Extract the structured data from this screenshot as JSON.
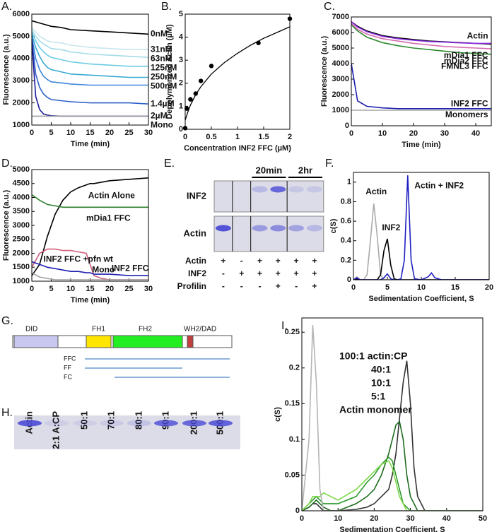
{
  "chart_data": [
    {
      "type": "line",
      "panel_label": "A.",
      "xlabel": "Time (min)",
      "ylabel": "Fluorescence (a.u.)",
      "xlim": [
        0,
        30
      ],
      "ylim": [
        1000,
        6000
      ],
      "xticks": [
        0,
        5,
        10,
        15,
        20,
        25,
        30
      ],
      "yticks": [
        1000,
        2000,
        3000,
        4000,
        5000,
        6000
      ],
      "x": [
        0,
        1,
        2,
        3,
        4,
        5,
        7.5,
        10,
        15,
        20,
        25,
        30
      ],
      "series": [
        {
          "name": "0nM",
          "color": "#000000",
          "values": [
            5700,
            5650,
            5600,
            5550,
            5500,
            5450,
            5400,
            5300,
            5250,
            5200,
            5150,
            5100
          ]
        },
        {
          "name": "31nM",
          "color": "#c8e6ee",
          "values": [
            5400,
            5200,
            5000,
            4900,
            4800,
            4750,
            4700,
            4600,
            4500,
            4450,
            4400,
            4400
          ]
        },
        {
          "name": "63nM",
          "color": "#a6dbe9",
          "values": [
            5300,
            5000,
            4800,
            4650,
            4550,
            4450,
            4400,
            4300,
            4200,
            4150,
            4100,
            4050
          ]
        },
        {
          "name": "125nM",
          "color": "#6ccbe4",
          "values": [
            5200,
            4800,
            4500,
            4300,
            4150,
            4050,
            3950,
            3850,
            3750,
            3700,
            3650,
            3650
          ]
        },
        {
          "name": "250nM",
          "color": "#39a9d3",
          "values": [
            5100,
            4500,
            4100,
            3800,
            3600,
            3500,
            3400,
            3300,
            3250,
            3200,
            3150,
            3150
          ]
        },
        {
          "name": "500nM",
          "color": "#3d86db",
          "values": [
            5000,
            4000,
            3500,
            3200,
            3050,
            2950,
            2900,
            2850,
            2800,
            2800,
            2800,
            2800
          ]
        },
        {
          "name": "1.4µM",
          "color": "#2f5fc9",
          "values": [
            4900,
            3300,
            2700,
            2400,
            2250,
            2150,
            2100,
            2050,
            2000,
            2000,
            2000,
            1950
          ]
        },
        {
          "name": "2µM",
          "color": "#1a1a99",
          "values": [
            4800,
            2300,
            1700,
            1500,
            1450,
            1420,
            1400,
            1400,
            1400,
            1400,
            1400,
            1400
          ]
        },
        {
          "name": "Mono",
          "color": "#a0a0a0",
          "values": [
            1400,
            1400,
            1400,
            1400,
            1400,
            1400,
            1400,
            1400,
            1400,
            1400,
            1400,
            1400
          ]
        }
      ]
    },
    {
      "type": "scatter",
      "panel_label": "B.",
      "xlabel": "Concentration INF2 FFC (µM)",
      "ylabel": "Depolymerized Actin (µM)",
      "xlim": [
        0,
        2
      ],
      "ylim": [
        0,
        5
      ],
      "xticks": [
        0,
        0.5,
        1,
        1.5,
        2
      ],
      "yticks": [
        0,
        1,
        2,
        3,
        4,
        5
      ],
      "x": [
        0,
        0.03,
        0.1,
        0.2,
        0.3,
        0.5,
        1.4,
        2
      ],
      "values": [
        0.05,
        0.9,
        1.3,
        1.55,
        2.1,
        2.75,
        3.75,
        4.8
      ],
      "color": "#000000",
      "fit": {
        "x": [
          0,
          0.05,
          0.1,
          0.2,
          0.3,
          0.5,
          0.75,
          1,
          1.25,
          1.5,
          1.75,
          2
        ],
        "values": [
          0.4,
          0.75,
          1.05,
          1.5,
          1.85,
          2.4,
          2.9,
          3.3,
          3.65,
          3.95,
          4.2,
          4.45
        ]
      }
    },
    {
      "type": "line",
      "panel_label": "C.",
      "xlabel": "Time (min)",
      "ylabel": "Fluorescence (a.u.)",
      "xlim": [
        0,
        45
      ],
      "ylim": [
        0,
        7000
      ],
      "xticks": [
        0,
        10,
        20,
        30,
        40
      ],
      "yticks": [
        0,
        1000,
        2000,
        3000,
        4000,
        5000,
        6000,
        7000
      ],
      "x": [
        0,
        2,
        5,
        10,
        15,
        20,
        25,
        30,
        35,
        40,
        45
      ],
      "series": [
        {
          "name": "Actin",
          "color": "#000000",
          "values": [
            6700,
            6400,
            6100,
            5800,
            5650,
            5550,
            5450,
            5400,
            5350,
            5300,
            5250
          ]
        },
        {
          "name": "mDia1 FFC",
          "color": "#2e8b2e",
          "values": [
            6500,
            6100,
            5700,
            5350,
            5150,
            5000,
            4900,
            4800,
            4700,
            4650,
            4600
          ]
        },
        {
          "name": "mDia2 FFC",
          "color": "#8a2be2",
          "values": [
            6700,
            6350,
            6050,
            5750,
            5600,
            5500,
            5420,
            5380,
            5330,
            5300,
            5300
          ]
        },
        {
          "name": "FMNL3 FFC",
          "color": "#d46fb0",
          "values": [
            6600,
            6200,
            5900,
            5600,
            5450,
            5300,
            5200,
            5100,
            5050,
            5000,
            4950
          ]
        },
        {
          "name": "INF2 FFC",
          "color": "#1f1fb0",
          "values": [
            4000,
            1600,
            1250,
            1150,
            1100,
            1100,
            1100,
            1100,
            1100,
            1100,
            1100
          ]
        },
        {
          "name": "Monomers",
          "color": "#a8a8a8",
          "values": [
            1000,
            1000,
            1000,
            1000,
            1000,
            1000,
            1000,
            1000,
            1000,
            1000,
            1000
          ]
        }
      ]
    },
    {
      "type": "line",
      "panel_label": "D.",
      "xlabel": "Time (min)",
      "ylabel": "Fluorescence (a.u.)",
      "xlim": [
        0,
        30
      ],
      "ylim": [
        1000,
        5000
      ],
      "xticks": [
        0,
        5,
        10,
        15,
        20,
        25,
        30
      ],
      "yticks": [
        1000,
        1500,
        2000,
        2500,
        3000,
        3500,
        4000,
        4500,
        5000
      ],
      "x": [
        0,
        2,
        4,
        6,
        8,
        10,
        12,
        14,
        15,
        16,
        18,
        20,
        25,
        30
      ],
      "series": [
        {
          "name": "Actin Alone",
          "color": "#000000",
          "values": [
            1200,
            1600,
            2600,
            3400,
            3900,
            4200,
            4350,
            4450,
            4500,
            4500,
            4550,
            4600,
            4650,
            4700
          ]
        },
        {
          "name": "mDia1 FFC",
          "color": "#2a7f2a",
          "values": [
            4100,
            3900,
            3750,
            3700,
            3650,
            3650,
            3650,
            3650,
            3650,
            3650,
            3650,
            3650,
            3650,
            3650
          ]
        },
        {
          "name": "INF2 FFC +pfn wt",
          "color": "#d0607e",
          "values": [
            1500,
            2000,
            2150,
            2150,
            2100,
            2100,
            2050,
            2000,
            1600,
            1200,
            1100,
            1050,
            1050,
            1050
          ]
        },
        {
          "name": "Mono",
          "color": "#a0a0a0",
          "values": [
            1300,
            1150,
            1100,
            1050,
            1050,
            1050,
            1050,
            1050,
            1050,
            1050,
            1050,
            1050,
            1050,
            1050
          ]
        },
        {
          "name": "INF2 FFC",
          "color": "#1f1fb0",
          "values": [
            1700,
            1600,
            1500,
            1450,
            1400,
            1350,
            1350,
            1300,
            1300,
            1250,
            1250,
            1250,
            1200,
            1200
          ]
        }
      ]
    },
    {
      "type": "line",
      "panel_label": "F.",
      "xlabel": "Sedimentation Coefficient, S",
      "ylabel": "c(S)",
      "xlim": [
        0,
        20
      ],
      "ylim": [
        0,
        1.1
      ],
      "xticks": [
        0,
        5,
        10,
        15,
        20
      ],
      "yticks": [
        0,
        0.2,
        0.4,
        0.6,
        0.8,
        1
      ],
      "x": [
        0,
        0.5,
        1,
        1.5,
        2,
        2.5,
        3,
        3.5,
        4,
        4.5,
        5,
        5.5,
        6,
        6.5,
        7,
        7.5,
        8,
        8.5,
        9,
        10,
        11,
        11.5,
        12,
        13,
        15,
        20
      ],
      "series": [
        {
          "name": "Actin",
          "color": "#aaaaaa",
          "values": [
            0,
            0.03,
            0,
            0,
            0.05,
            0.4,
            0.78,
            0.45,
            0.05,
            0,
            0,
            0,
            0,
            0,
            0,
            0,
            0,
            0,
            0,
            0,
            0,
            0,
            0,
            0,
            0,
            0
          ]
        },
        {
          "name": "INF2",
          "color": "#000000",
          "values": [
            0,
            0.01,
            0,
            0,
            0,
            0,
            0,
            0,
            0.05,
            0.3,
            0.42,
            0.15,
            0.01,
            0,
            0,
            0,
            0,
            0,
            0,
            0,
            0,
            0,
            0,
            0,
            0,
            0
          ]
        },
        {
          "name": "Actin + INF2",
          "color": "#2020c0",
          "values": [
            0,
            0.02,
            0,
            0,
            0,
            0,
            0,
            0,
            0,
            0.02,
            0.06,
            0.01,
            0,
            0,
            0.01,
            0.2,
            1.07,
            0.2,
            0.01,
            0,
            0.03,
            0.07,
            0.02,
            0,
            0,
            0
          ]
        }
      ]
    },
    {
      "type": "line",
      "panel_label": "I.",
      "xlabel": "Sedimentation Coefficient, S",
      "ylabel": "c(S)",
      "xlim": [
        0,
        50
      ],
      "ylim": [
        0,
        0.27
      ],
      "xticks": [
        0,
        10,
        20,
        30,
        40,
        50
      ],
      "yticks": [
        0,
        0.05,
        0.1,
        0.15,
        0.2,
        0.25
      ],
      "x": [
        0,
        2,
        3,
        4,
        5,
        6,
        8,
        10,
        15,
        18,
        20,
        22,
        24,
        25,
        26,
        27,
        28,
        29,
        30,
        31,
        32,
        34,
        40,
        50
      ],
      "series": [
        {
          "name": "100:1 actin:CP",
          "color": "#333333",
          "values": [
            0,
            0.005,
            0.01,
            0.01,
            0.005,
            0,
            0,
            0,
            0.002,
            0.005,
            0.01,
            0.02,
            0.03,
            0.05,
            0.08,
            0.13,
            0.18,
            0.21,
            0.15,
            0.06,
            0.02,
            0,
            0,
            0
          ]
        },
        {
          "name": "40:1",
          "color": "#1e6b1e",
          "values": [
            0,
            0.005,
            0.01,
            0.015,
            0.01,
            0.005,
            0,
            0,
            0.01,
            0.02,
            0.03,
            0.05,
            0.08,
            0.1,
            0.12,
            0.125,
            0.1,
            0.05,
            0.02,
            0.01,
            0,
            0,
            0,
            0
          ]
        },
        {
          "name": "10:1",
          "color": "#2f9a2f",
          "values": [
            0,
            0.01,
            0.015,
            0.02,
            0.015,
            0.01,
            0.01,
            0.01,
            0.02,
            0.04,
            0.05,
            0.065,
            0.075,
            0.07,
            0.05,
            0.03,
            0.01,
            0.005,
            0,
            0,
            0,
            0,
            0,
            0
          ]
        },
        {
          "name": "5:1",
          "color": "#7ed84a",
          "values": [
            0,
            0.01,
            0.02,
            0.02,
            0.02,
            0.025,
            0.02,
            0.015,
            0.03,
            0.045,
            0.055,
            0.065,
            0.07,
            0.06,
            0.04,
            0.02,
            0.01,
            0,
            0,
            0,
            0,
            0,
            0,
            0
          ]
        },
        {
          "name": "Actin monomer",
          "color": "#b5b5b5",
          "values": [
            0,
            0.1,
            0.26,
            0.18,
            0.03,
            0,
            0,
            0,
            0,
            0,
            0,
            0,
            0,
            0,
            0,
            0,
            0,
            0,
            0,
            0,
            0,
            0,
            0,
            0
          ]
        }
      ]
    }
  ],
  "gel_e": {
    "panel_label": "E.",
    "time_labels": [
      "20min",
      "2hr"
    ],
    "band_labels": [
      "INF2",
      "Actin"
    ],
    "rows": [
      {
        "label": "Actin",
        "signs": [
          "+",
          "-",
          "+",
          "+",
          "+",
          "+"
        ]
      },
      {
        "label": "INF2",
        "signs": [
          "-",
          "+",
          "+",
          "+",
          "+",
          "+"
        ]
      },
      {
        "label": "Profilin",
        "signs": [
          "-",
          "-",
          "-",
          "+",
          "-",
          "+"
        ]
      }
    ]
  },
  "diagram_g": {
    "panel_label": "G.",
    "domains": [
      "DID",
      "FH1",
      "FH2",
      "WH2/DAD"
    ],
    "constructs": [
      "FFC",
      "FF",
      "FC"
    ]
  },
  "gel_h": {
    "panel_label": "H.",
    "lanes": [
      "Actin",
      "2:1 A:CP",
      "50:1",
      "70:1",
      "80:1",
      "90:1",
      "200:1",
      "500:1"
    ]
  }
}
